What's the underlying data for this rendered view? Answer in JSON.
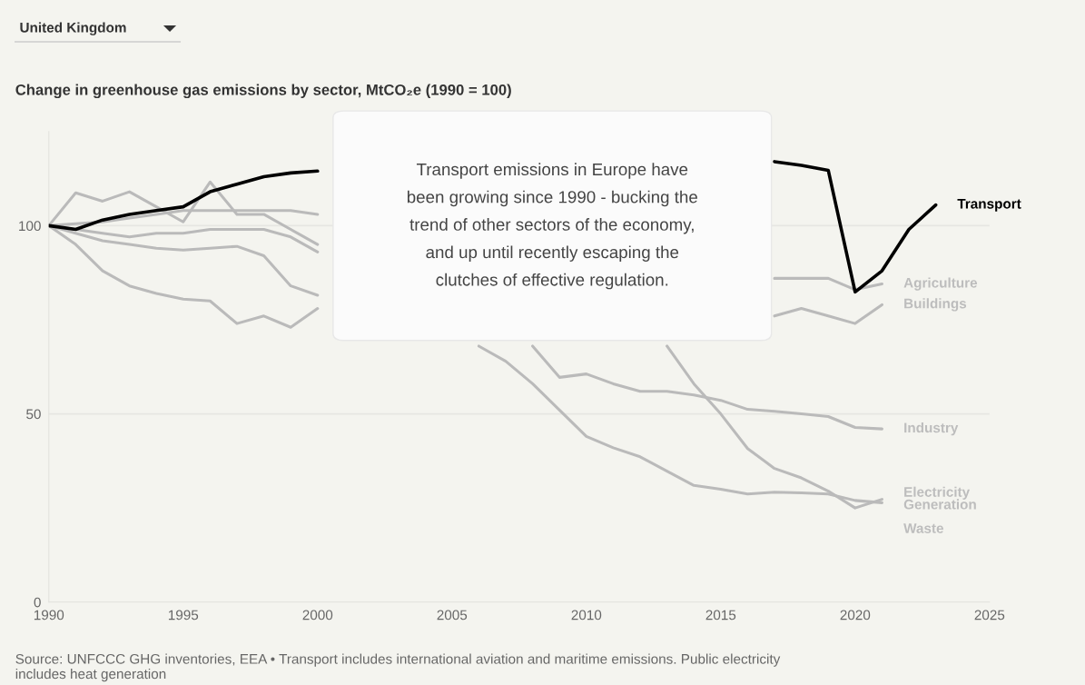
{
  "chart_data": {
    "type": "line",
    "title": "Change in greenhouse gas emissions by sector, MtCO₂e (1990 = 100)",
    "x": [
      1990,
      1991,
      1992,
      1993,
      1994,
      1995,
      1996,
      1997,
      1998,
      1999,
      2000,
      2001,
      2002,
      2003,
      2004,
      2005,
      2006,
      2007,
      2008,
      2009,
      2010,
      2011,
      2012,
      2013,
      2014,
      2015,
      2016,
      2017,
      2018,
      2019,
      2020,
      2021,
      2022,
      2023
    ],
    "series": [
      {
        "name": "Transport",
        "color": "#000000",
        "values": [
          100,
          99,
          101.5,
          103,
          104,
          105,
          109,
          111,
          113,
          114,
          114.5,
          null,
          null,
          null,
          null,
          null,
          null,
          null,
          null,
          null,
          null,
          null,
          null,
          null,
          null,
          null,
          null,
          117,
          116,
          114.7,
          82.4,
          88,
          99,
          105.5
        ]
      },
      {
        "name": "Agriculture",
        "color": "#bababa",
        "values": [
          100,
          100.5,
          101,
          102,
          103,
          104,
          104,
          104,
          104,
          104,
          103,
          null,
          null,
          null,
          null,
          null,
          null,
          null,
          null,
          null,
          null,
          null,
          null,
          null,
          null,
          null,
          null,
          86,
          86,
          86,
          83,
          84.5,
          null,
          null
        ]
      },
      {
        "name": "Buildings",
        "color": "#bababa",
        "values": [
          100,
          108.7,
          106.5,
          109,
          105,
          101,
          111.6,
          103,
          103,
          99,
          95,
          null,
          null,
          null,
          null,
          null,
          null,
          null,
          null,
          null,
          null,
          null,
          null,
          null,
          null,
          null,
          null,
          76,
          78,
          76,
          74,
          79,
          null,
          null
        ]
      },
      {
        "name": "Industry",
        "color": "#bababa",
        "values": [
          100,
          99,
          98,
          97,
          98,
          98,
          99,
          99,
          99,
          97,
          93,
          null,
          null,
          null,
          null,
          null,
          null,
          null,
          68,
          59.7,
          60.6,
          58,
          56,
          56,
          55,
          53.6,
          51.2,
          50.7,
          50,
          49.3,
          46.4,
          46,
          null,
          null
        ]
      },
      {
        "name": "Electricity\nGeneration",
        "color": "#bababa",
        "values": [
          100,
          95,
          88,
          84,
          82,
          80.5,
          80,
          74,
          76,
          73,
          78,
          null,
          null,
          null,
          null,
          null,
          null,
          null,
          null,
          null,
          null,
          null,
          null,
          68,
          58,
          50,
          40.8,
          35.5,
          33,
          29.5,
          25,
          27.3,
          null,
          null
        ]
      },
      {
        "name": "Waste",
        "color": "#bababa",
        "values": [
          100,
          98,
          96,
          95,
          94,
          93.5,
          94,
          94.5,
          92,
          84,
          81.5,
          null,
          null,
          null,
          null,
          null,
          68,
          64,
          58,
          51,
          44,
          41,
          38.6,
          34.8,
          31,
          30,
          28.7,
          29.2,
          29,
          28.7,
          27,
          26.4,
          null,
          null
        ]
      }
    ],
    "xlim": [
      1990,
      2025
    ],
    "xticks": [
      1990,
      1995,
      2000,
      2005,
      2010,
      2015,
      2020,
      2025
    ],
    "ylim": [
      0,
      125
    ],
    "yticks": [
      0,
      50,
      100
    ],
    "grid": "y",
    "legend": false,
    "marker": "none",
    "line_style": "solid",
    "annotations": [
      "United Kingdom",
      "Transport emissions in Europe have\nbeen growing since 1990 - bucking the\ntrend of other sectors of the economy,\nand up until recently escaping the\nclutches of effective regulation.",
      "Source: UNFCCC GHG inventories, EEA • Transport includes international aviation and maritime emissions. Public electricity\nincludes heat generation"
    ]
  }
}
